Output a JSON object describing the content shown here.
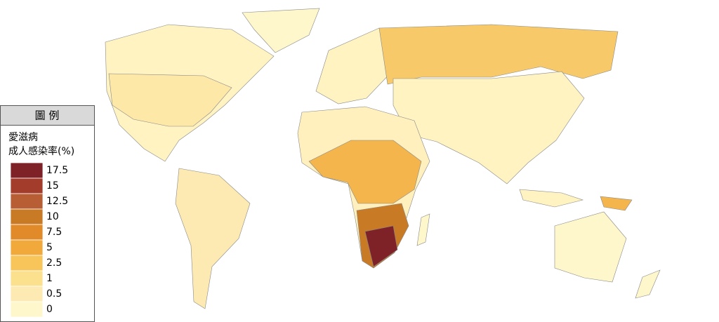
{
  "legend": {
    "title": "圖 例",
    "subtitle": [
      "愛滋病",
      "成人感染率(%)"
    ],
    "items": [
      {
        "value": 17.5,
        "color": "#7e2228"
      },
      {
        "value": 15,
        "color": "#a33c2b"
      },
      {
        "value": 12.5,
        "color": "#b85e35"
      },
      {
        "value": 10,
        "color": "#c97a24"
      },
      {
        "value": 7.5,
        "color": "#e08a2a"
      },
      {
        "value": 5,
        "color": "#f0a93a"
      },
      {
        "value": 2.5,
        "color": "#f7c55a"
      },
      {
        "value": 1,
        "color": "#fbe08e"
      },
      {
        "value": 0.5,
        "color": "#fdeab2"
      },
      {
        "value": 0,
        "color": "#fff7cc"
      }
    ]
  }
}
